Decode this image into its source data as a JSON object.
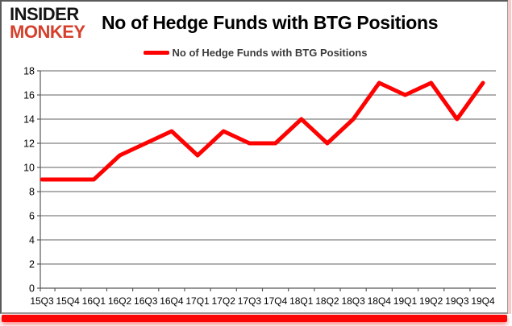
{
  "logo": {
    "line1": "INSIDER",
    "line2": "MONKEY"
  },
  "header": {
    "title": "No of Hedge Funds with BTG Positions"
  },
  "legend": {
    "label": "No of Hedge Funds with BTG Positions"
  },
  "colors": {
    "line": "#fe0101",
    "grid": "#808080",
    "axis": "#595959",
    "tick_label": "#000000",
    "logo_red": "#d5402b",
    "accent_bar": "#fb0606",
    "accent_edge": "#f6cac6"
  },
  "chart_data": {
    "type": "line",
    "title": "No of Hedge Funds with BTG Positions",
    "categories": [
      "15Q3",
      "15Q4",
      "16Q1",
      "16Q2",
      "16Q3",
      "16Q4",
      "17Q1",
      "17Q2",
      "17Q3",
      "17Q4",
      "18Q1",
      "18Q2",
      "18Q3",
      "18Q4",
      "19Q1",
      "19Q2",
      "19Q3",
      "19Q4"
    ],
    "series": [
      {
        "name": "No of Hedge Funds with BTG Positions",
        "values": [
          9,
          9,
          9,
          11,
          12,
          13,
          11,
          13,
          12,
          12,
          14,
          12,
          14,
          17,
          16,
          17,
          14,
          17
        ]
      }
    ],
    "xlabel": "",
    "ylabel": "",
    "ylim": [
      0,
      18
    ],
    "ytick_step": 2,
    "grid": "horizontal",
    "legend_position": "top"
  }
}
